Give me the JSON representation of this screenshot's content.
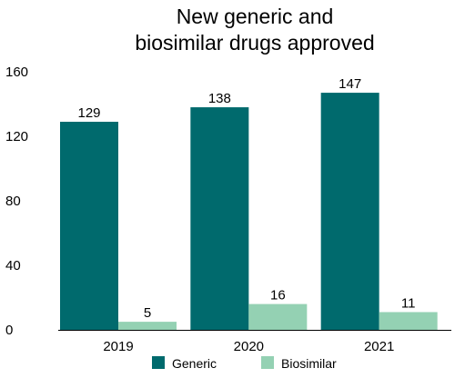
{
  "chart_data": {
    "type": "bar",
    "title": [
      "New generic and",
      "biosimilar drugs approved"
    ],
    "categories": [
      "2019",
      "2020",
      "2021"
    ],
    "series": [
      {
        "name": "Generic",
        "values": [
          129,
          138,
          147
        ],
        "color": "#006a6d"
      },
      {
        "name": "Biosimilar",
        "values": [
          5,
          16,
          11
        ],
        "color": "#94d1b3"
      }
    ],
    "ylim": [
      0,
      160
    ],
    "yticks": [
      "0",
      "40",
      "80",
      "120",
      "160"
    ],
    "grid": false,
    "legend_position": "bottom"
  }
}
